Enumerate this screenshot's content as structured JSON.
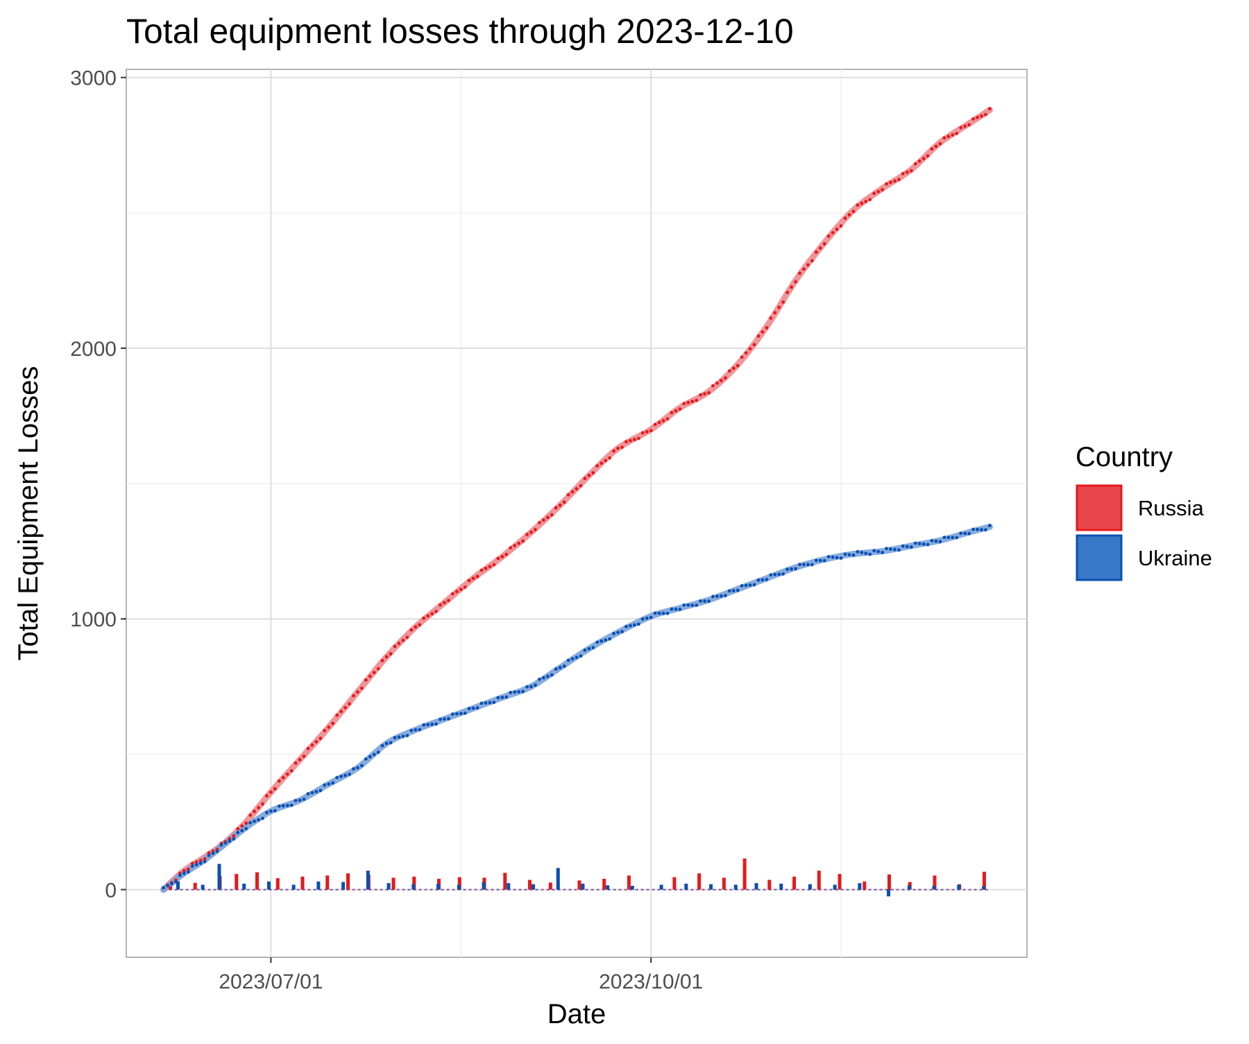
{
  "chart_data": {
    "type": "line",
    "title": "Total equipment losses through 2023-12-10",
    "xlabel": "Date",
    "ylabel": "Total Equipment Losses",
    "x_range": [
      "2023-05-27",
      "2023-12-31"
    ],
    "ylim": [
      -250,
      3030
    ],
    "x_ticks": [
      {
        "date": "2023-07-01",
        "label": "2023/07/01"
      },
      {
        "date": "2023-10-01",
        "label": "2023/10/01"
      }
    ],
    "x_minor_ticks": [
      "2023-08-16",
      "2023-11-16"
    ],
    "y_ticks": [
      {
        "value": 0,
        "label": "0"
      },
      {
        "value": 1000,
        "label": "1000"
      },
      {
        "value": 2000,
        "label": "2000"
      },
      {
        "value": 3000,
        "label": "3000"
      }
    ],
    "y_minor_ticks": [
      500,
      1500,
      2500
    ],
    "grid": true,
    "legend": {
      "title": "Country",
      "position": "right"
    },
    "series": [
      {
        "name": "Russia",
        "color": "#e41a1c",
        "fill": "#e8474b",
        "smooth_color": "#ee8a8f",
        "cumulative": [
          {
            "date": "2023-06-05",
            "value": 0
          },
          {
            "date": "2023-06-10",
            "value": 70
          },
          {
            "date": "2023-06-15",
            "value": 120
          },
          {
            "date": "2023-06-20",
            "value": 175
          },
          {
            "date": "2023-06-25",
            "value": 250
          },
          {
            "date": "2023-07-01",
            "value": 360
          },
          {
            "date": "2023-07-08",
            "value": 480
          },
          {
            "date": "2023-07-15",
            "value": 600
          },
          {
            "date": "2023-07-22",
            "value": 730
          },
          {
            "date": "2023-07-29",
            "value": 860
          },
          {
            "date": "2023-08-05",
            "value": 970
          },
          {
            "date": "2023-08-12",
            "value": 1060
          },
          {
            "date": "2023-08-19",
            "value": 1150
          },
          {
            "date": "2023-08-26",
            "value": 1230
          },
          {
            "date": "2023-09-02",
            "value": 1320
          },
          {
            "date": "2023-09-09",
            "value": 1420
          },
          {
            "date": "2023-09-16",
            "value": 1530
          },
          {
            "date": "2023-09-23",
            "value": 1630
          },
          {
            "date": "2023-10-01",
            "value": 1700
          },
          {
            "date": "2023-10-08",
            "value": 1780
          },
          {
            "date": "2023-10-15",
            "value": 1840
          },
          {
            "date": "2023-10-22",
            "value": 1940
          },
          {
            "date": "2023-10-29",
            "value": 2080
          },
          {
            "date": "2023-11-05",
            "value": 2250
          },
          {
            "date": "2023-11-12",
            "value": 2390
          },
          {
            "date": "2023-11-19",
            "value": 2510
          },
          {
            "date": "2023-11-26",
            "value": 2590
          },
          {
            "date": "2023-12-03",
            "value": 2660
          },
          {
            "date": "2023-12-10",
            "value": 2760
          },
          {
            "date": "2023-12-17",
            "value": 2830
          },
          {
            "date": "2023-12-22",
            "value": 2880
          }
        ],
        "daily": [
          {
            "date": "2023-06-07",
            "value": 12
          },
          {
            "date": "2023-06-13",
            "value": 25
          },
          {
            "date": "2023-06-19",
            "value": 50
          },
          {
            "date": "2023-06-23",
            "value": 58
          },
          {
            "date": "2023-06-28",
            "value": 64
          },
          {
            "date": "2023-07-03",
            "value": 42
          },
          {
            "date": "2023-07-09",
            "value": 48
          },
          {
            "date": "2023-07-15",
            "value": 52
          },
          {
            "date": "2023-07-20",
            "value": 60
          },
          {
            "date": "2023-07-25",
            "value": 56
          },
          {
            "date": "2023-07-31",
            "value": 44
          },
          {
            "date": "2023-08-05",
            "value": 48
          },
          {
            "date": "2023-08-11",
            "value": 40
          },
          {
            "date": "2023-08-16",
            "value": 46
          },
          {
            "date": "2023-08-22",
            "value": 44
          },
          {
            "date": "2023-08-27",
            "value": 62
          },
          {
            "date": "2023-09-02",
            "value": 36
          },
          {
            "date": "2023-09-07",
            "value": 26
          },
          {
            "date": "2023-09-14",
            "value": 34
          },
          {
            "date": "2023-09-20",
            "value": 40
          },
          {
            "date": "2023-09-26",
            "value": 52
          },
          {
            "date": "2023-10-07",
            "value": 46
          },
          {
            "date": "2023-10-13",
            "value": 60
          },
          {
            "date": "2023-10-19",
            "value": 44
          },
          {
            "date": "2023-10-24",
            "value": 115
          },
          {
            "date": "2023-10-30",
            "value": 36
          },
          {
            "date": "2023-11-05",
            "value": 48
          },
          {
            "date": "2023-11-11",
            "value": 70
          },
          {
            "date": "2023-11-16",
            "value": 58
          },
          {
            "date": "2023-11-22",
            "value": 30
          },
          {
            "date": "2023-11-28",
            "value": 56
          },
          {
            "date": "2023-12-03",
            "value": 28
          },
          {
            "date": "2023-12-09",
            "value": 52
          },
          {
            "date": "2023-12-15",
            "value": 20
          },
          {
            "date": "2023-12-21",
            "value": 66
          }
        ]
      },
      {
        "name": "Ukraine",
        "color": "#0b4fb0",
        "fill": "#3778c7",
        "smooth_color": "#7aa3da",
        "cumulative": [
          {
            "date": "2023-06-05",
            "value": 0
          },
          {
            "date": "2023-06-10",
            "value": 60
          },
          {
            "date": "2023-06-15",
            "value": 110
          },
          {
            "date": "2023-06-20",
            "value": 170
          },
          {
            "date": "2023-06-25",
            "value": 230
          },
          {
            "date": "2023-07-01",
            "value": 290
          },
          {
            "date": "2023-07-08",
            "value": 330
          },
          {
            "date": "2023-07-15",
            "value": 390
          },
          {
            "date": "2023-07-22",
            "value": 450
          },
          {
            "date": "2023-07-29",
            "value": 540
          },
          {
            "date": "2023-08-05",
            "value": 590
          },
          {
            "date": "2023-08-12",
            "value": 630
          },
          {
            "date": "2023-08-19",
            "value": 670
          },
          {
            "date": "2023-08-26",
            "value": 710
          },
          {
            "date": "2023-09-02",
            "value": 750
          },
          {
            "date": "2023-09-09",
            "value": 820
          },
          {
            "date": "2023-09-16",
            "value": 890
          },
          {
            "date": "2023-09-23",
            "value": 950
          },
          {
            "date": "2023-10-01",
            "value": 1010
          },
          {
            "date": "2023-10-08",
            "value": 1040
          },
          {
            "date": "2023-10-15",
            "value": 1070
          },
          {
            "date": "2023-10-22",
            "value": 1110
          },
          {
            "date": "2023-10-29",
            "value": 1150
          },
          {
            "date": "2023-11-05",
            "value": 1190
          },
          {
            "date": "2023-11-12",
            "value": 1220
          },
          {
            "date": "2023-11-19",
            "value": 1240
          },
          {
            "date": "2023-11-26",
            "value": 1250
          },
          {
            "date": "2023-12-03",
            "value": 1270
          },
          {
            "date": "2023-12-10",
            "value": 1290
          },
          {
            "date": "2023-12-17",
            "value": 1320
          },
          {
            "date": "2023-12-22",
            "value": 1340
          }
        ],
        "daily": [
          {
            "date": "2023-06-08",
            "value": 30
          },
          {
            "date": "2023-06-14",
            "value": 18
          },
          {
            "date": "2023-06-18",
            "value": 95
          },
          {
            "date": "2023-06-24",
            "value": 22
          },
          {
            "date": "2023-06-30",
            "value": 30
          },
          {
            "date": "2023-07-06",
            "value": 18
          },
          {
            "date": "2023-07-12",
            "value": 30
          },
          {
            "date": "2023-07-18",
            "value": 28
          },
          {
            "date": "2023-07-24",
            "value": 70
          },
          {
            "date": "2023-07-29",
            "value": 24
          },
          {
            "date": "2023-08-04",
            "value": 20
          },
          {
            "date": "2023-08-10",
            "value": 22
          },
          {
            "date": "2023-08-15",
            "value": 18
          },
          {
            "date": "2023-08-21",
            "value": 28
          },
          {
            "date": "2023-08-27",
            "value": 24
          },
          {
            "date": "2023-09-02",
            "value": 20
          },
          {
            "date": "2023-09-08",
            "value": 80
          },
          {
            "date": "2023-09-14",
            "value": 22
          },
          {
            "date": "2023-09-20",
            "value": 16
          },
          {
            "date": "2023-09-26",
            "value": 14
          },
          {
            "date": "2023-10-03",
            "value": 18
          },
          {
            "date": "2023-10-09",
            "value": 22
          },
          {
            "date": "2023-10-15",
            "value": 20
          },
          {
            "date": "2023-10-21",
            "value": 18
          },
          {
            "date": "2023-10-26",
            "value": 24
          },
          {
            "date": "2023-11-01",
            "value": 22
          },
          {
            "date": "2023-11-08",
            "value": 20
          },
          {
            "date": "2023-11-14",
            "value": 18
          },
          {
            "date": "2023-11-20",
            "value": 24
          },
          {
            "date": "2023-11-27",
            "value": -25
          },
          {
            "date": "2023-12-02",
            "value": 16
          },
          {
            "date": "2023-12-08",
            "value": 14
          },
          {
            "date": "2023-12-14",
            "value": 18
          },
          {
            "date": "2023-12-20",
            "value": 12
          }
        ]
      }
    ]
  }
}
